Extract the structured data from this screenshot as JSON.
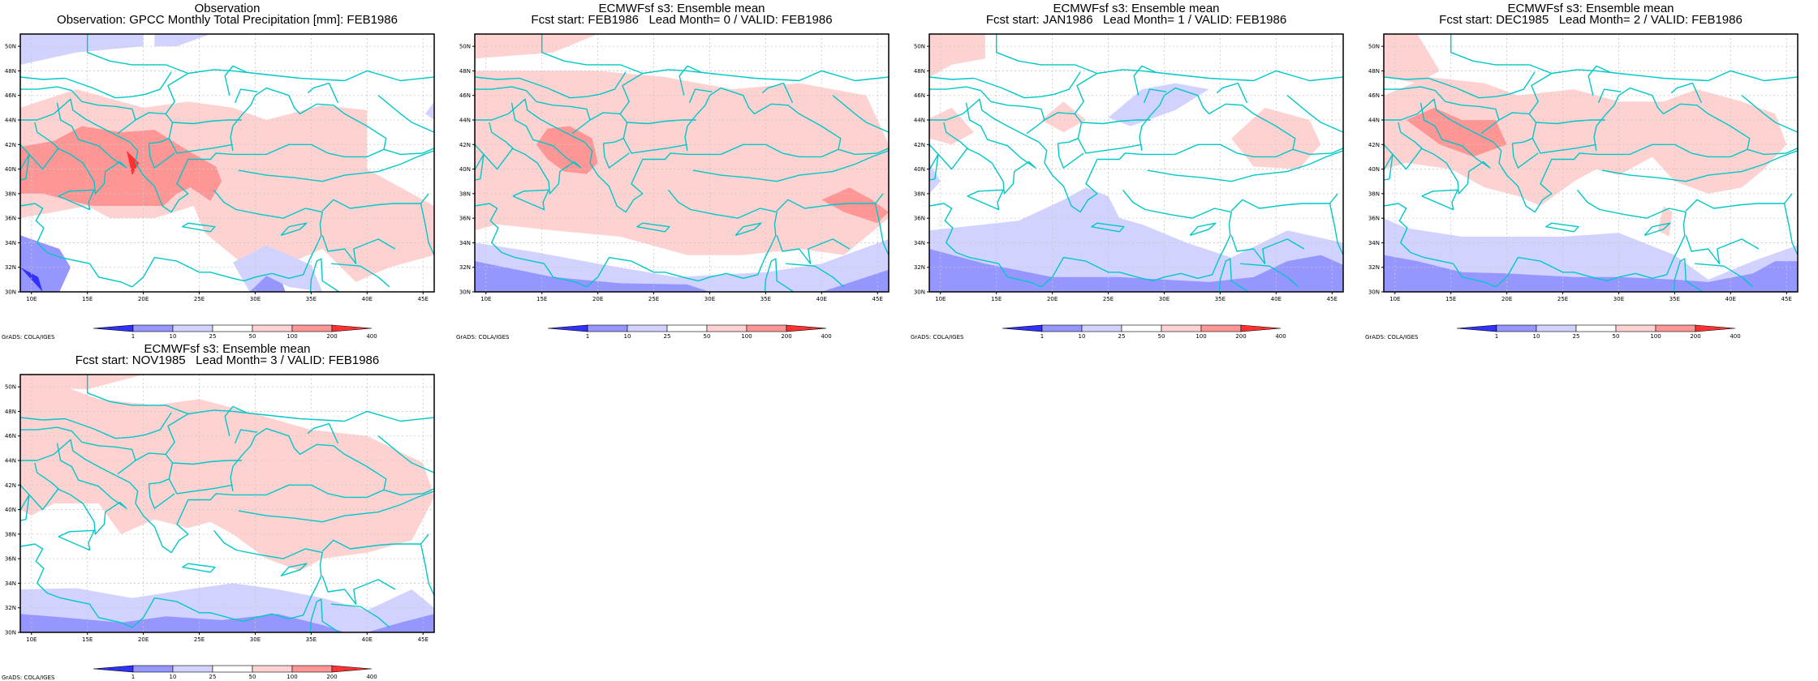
{
  "panels": [
    {
      "title1": "Observation",
      "title2": "Observation: GPCC Monthly Total Precipitation [mm]: FEB1986",
      "pattern": "obs"
    },
    {
      "title1": "ECMWFsf s3: Ensemble mean",
      "title2": "Fcst start: FEB1986   Lead Month= 0 / VALID: FEB1986",
      "pattern": "lead0"
    },
    {
      "title1": "ECMWFsf s3: Ensemble mean",
      "title2": "Fcst start: JAN1986   Lead Month= 1 / VALID: FEB1986",
      "pattern": "lead1"
    },
    {
      "title1": "ECMWFsf s3: Ensemble mean",
      "title2": "Fcst start: DEC1985   Lead Month= 2 / VALID: FEB1986",
      "pattern": "lead2"
    },
    {
      "title1": "ECMWFsf s3: Ensemble mean",
      "title2": "Fcst start: NOV1985   Lead Month= 3 / VALID: FEB1986",
      "pattern": "lead3"
    }
  ],
  "map": {
    "lat_labels": [
      "50N",
      "48N",
      "46N",
      "44N",
      "42N",
      "40N",
      "38N",
      "36N",
      "34N",
      "32N",
      "30N"
    ],
    "lon_labels": [
      "10E",
      "15E",
      "20E",
      "25E",
      "30E",
      "35E",
      "40E",
      "45E"
    ],
    "lon_range": [
      9,
      46
    ],
    "lat_range": [
      30,
      51
    ],
    "coastline_color": "#00c8c8",
    "grid_color": "#c8c8c8"
  },
  "colorbar": {
    "labels": [
      "1",
      "10",
      "25",
      "50",
      "100",
      "200",
      "400"
    ],
    "colors": [
      "#3232ff",
      "#9696ff",
      "#d2d2ff",
      "#ffffff",
      "#ffd2d2",
      "#ff9696",
      "#ff3232"
    ]
  },
  "credit": "GrADS: COLA/IGES"
}
